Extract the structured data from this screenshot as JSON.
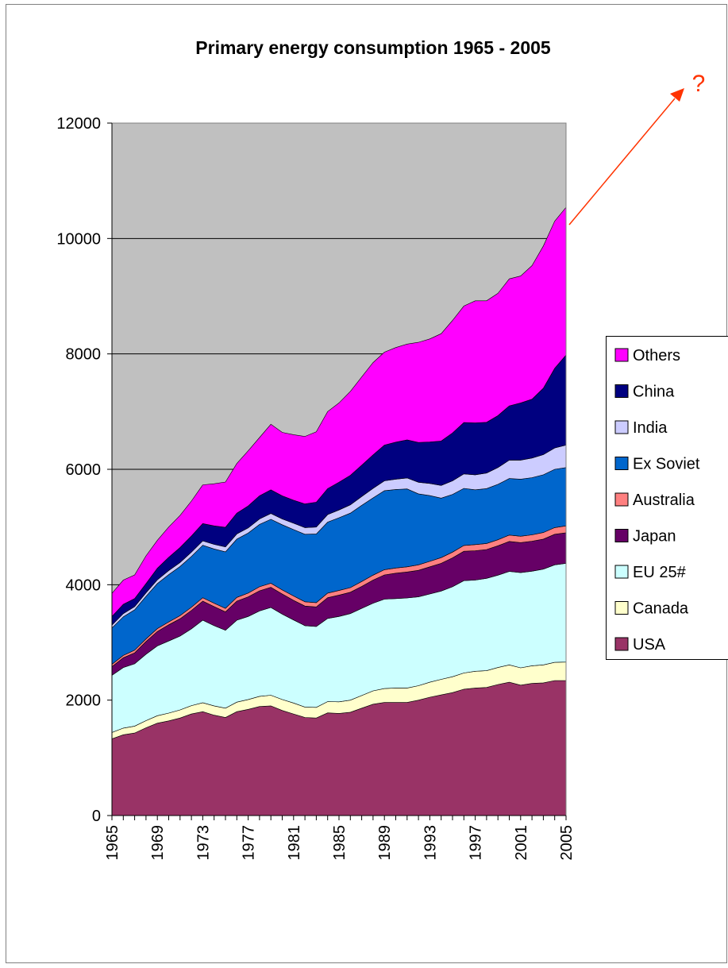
{
  "chart_data": {
    "type": "stacked_area",
    "title": "Primary energy consumption 1965 - 2005",
    "annotation": "?",
    "categories": [
      "1965",
      null,
      null,
      null,
      "1969",
      null,
      null,
      null,
      "1973",
      null,
      null,
      null,
      "1977",
      null,
      null,
      null,
      "1981",
      null,
      null,
      null,
      "1985",
      null,
      null,
      null,
      "1989",
      null,
      null,
      null,
      "1993",
      null,
      null,
      null,
      "1997",
      null,
      null,
      null,
      "2001",
      null,
      null,
      null,
      "2005"
    ],
    "ylim": [
      0,
      12000
    ],
    "yticks": [
      0,
      2000,
      4000,
      6000,
      8000,
      10000,
      12000
    ],
    "grid": true,
    "legend": "right",
    "plot_background": "#c0c0c0",
    "series": [
      {
        "name": "USA",
        "color": "#993366",
        "values": [
          1330,
          1400,
          1430,
          1520,
          1600,
          1640,
          1690,
          1760,
          1800,
          1740,
          1700,
          1800,
          1840,
          1890,
          1900,
          1820,
          1760,
          1700,
          1690,
          1780,
          1770,
          1790,
          1860,
          1930,
          1960,
          1960,
          1960,
          2000,
          2050,
          2090,
          2130,
          2190,
          2210,
          2220,
          2270,
          2310,
          2260,
          2290,
          2300,
          2340,
          2340
        ]
      },
      {
        "name": "Canada",
        "color": "#ffffcc",
        "values": [
          110,
          115,
          120,
          125,
          130,
          135,
          140,
          145,
          155,
          160,
          160,
          165,
          170,
          175,
          185,
          190,
          190,
          180,
          185,
          195,
          200,
          210,
          220,
          230,
          240,
          250,
          250,
          250,
          260,
          270,
          275,
          280,
          290,
          290,
          295,
          300,
          300,
          305,
          310,
          315,
          320
        ]
      },
      {
        "name": "EU 25#",
        "color": "#ccffff",
        "values": [
          990,
          1050,
          1080,
          1150,
          1210,
          1250,
          1280,
          1330,
          1430,
          1390,
          1350,
          1420,
          1440,
          1480,
          1520,
          1480,
          1440,
          1410,
          1400,
          1440,
          1480,
          1500,
          1510,
          1520,
          1550,
          1550,
          1560,
          1540,
          1530,
          1530,
          1560,
          1600,
          1580,
          1600,
          1600,
          1620,
          1650,
          1640,
          1660,
          1690,
          1710
        ]
      },
      {
        "name": "Japan",
        "color": "#660066",
        "values": [
          150,
          170,
          190,
          220,
          250,
          280,
          300,
          320,
          330,
          330,
          320,
          330,
          340,
          350,
          350,
          350,
          340,
          340,
          340,
          360,
          370,
          370,
          380,
          400,
          420,
          440,
          450,
          460,
          470,
          480,
          500,
          510,
          510,
          500,
          510,
          520,
          520,
          520,
          520,
          530,
          530
        ]
      },
      {
        "name": "Australia",
        "color": "#ff8080",
        "values": [
          40,
          40,
          45,
          45,
          50,
          50,
          55,
          55,
          60,
          60,
          60,
          65,
          65,
          70,
          70,
          70,
          75,
          75,
          75,
          80,
          80,
          80,
          85,
          85,
          90,
          90,
          90,
          95,
          95,
          100,
          100,
          100,
          105,
          105,
          105,
          110,
          110,
          110,
          115,
          115,
          120
        ]
      },
      {
        "name": "Ex Soviet",
        "color": "#0066cc",
        "values": [
          630,
          670,
          700,
          740,
          780,
          820,
          850,
          880,
          910,
          940,
          980,
          1010,
          1040,
          1080,
          1110,
          1130,
          1150,
          1170,
          1190,
          1230,
          1260,
          1290,
          1320,
          1340,
          1370,
          1360,
          1350,
          1230,
          1140,
          1030,
          1000,
          990,
          950,
          950,
          960,
          980,
          990,
          990,
          1000,
          1010,
          1010
        ]
      },
      {
        "name": "India",
        "color": "#ccccff",
        "values": [
          50,
          55,
          55,
          60,
          65,
          70,
          70,
          75,
          75,
          80,
          85,
          90,
          90,
          95,
          100,
          100,
          110,
          115,
          120,
          130,
          135,
          145,
          155,
          165,
          170,
          180,
          190,
          200,
          210,
          220,
          235,
          250,
          260,
          270,
          290,
          320,
          330,
          340,
          350,
          370,
          390
        ]
      },
      {
        "name": "China",
        "color": "#000080",
        "values": [
          150,
          160,
          140,
          160,
          200,
          230,
          260,
          280,
          300,
          320,
          340,
          360,
          380,
          400,
          410,
          400,
          400,
          410,
          430,
          450,
          480,
          510,
          540,
          580,
          620,
          640,
          660,
          690,
          720,
          770,
          830,
          890,
          900,
          880,
          900,
          940,
          990,
          1020,
          1150,
          1380,
          1560
        ]
      },
      {
        "name": "Others",
        "color": "#ff00ff",
        "values": [
          400,
          420,
          410,
          480,
          485,
          525,
          555,
          605,
          670,
          730,
          785,
          860,
          955,
          1010,
          1135,
          1100,
          1135,
          1170,
          1220,
          1335,
          1375,
          1455,
          1530,
          1600,
          1610,
          1640,
          1660,
          1735,
          1785,
          1860,
          1950,
          2020,
          2115,
          2105,
          2120,
          2200,
          2200,
          2315,
          2465,
          2550,
          2560
        ]
      }
    ]
  }
}
